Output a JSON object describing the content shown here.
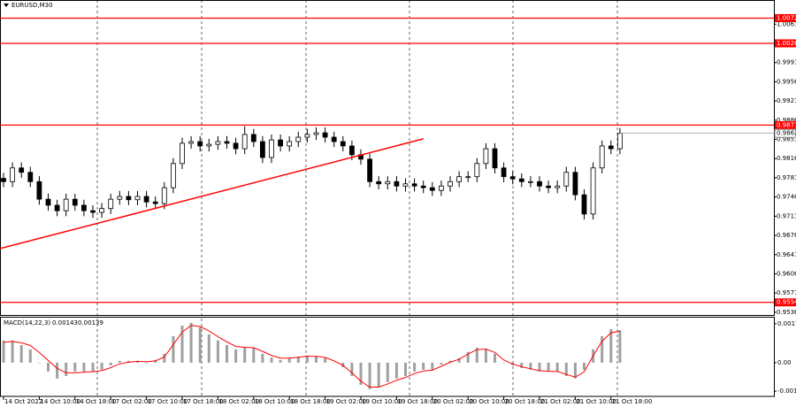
{
  "chart_data": [
    {
      "type": "candlestick",
      "symbol": "EURUSD,M30",
      "categories": [
        "14 Oct 2022",
        null,
        null,
        null,
        "14 Oct 10:00",
        null,
        null,
        null,
        "14 Oct 18:00",
        null,
        null,
        null,
        "17 Oct 02:00",
        null,
        null,
        null,
        "17 Oct 10:00",
        null,
        null,
        null,
        "17 Oct 18:00",
        null,
        null,
        null,
        "18 Oct 02:00",
        null,
        null,
        null,
        "18 Oct 10:00",
        null,
        null,
        null,
        "18 Oct 18:00",
        null,
        null,
        null,
        "19 Oct 02:00",
        null,
        null,
        null,
        "19 Oct 10:00",
        null,
        null,
        null,
        "19 Oct 18:00",
        null,
        null,
        null,
        "20 Oct 02:00",
        null,
        null,
        null,
        "20 Oct 10:00",
        null,
        null,
        null,
        "20 Oct 18:00",
        null,
        null,
        null,
        "21 Oct 02:00",
        null,
        null,
        null,
        "21 Oct 10:00",
        null,
        null,
        null,
        "21 Oct 18:00",
        null
      ],
      "open": [
        0.978,
        0.9774,
        0.9799,
        0.9791,
        0.9774,
        0.9742,
        0.9731,
        0.9721,
        0.9742,
        0.9731,
        0.9721,
        0.9718,
        0.9725,
        0.9742,
        0.9747,
        0.9741,
        0.9747,
        0.9737,
        0.9734,
        0.9763,
        0.9807,
        0.9844,
        0.9847,
        0.9839,
        0.9842,
        0.9847,
        0.9844,
        0.9834,
        0.986,
        0.9847,
        0.9818,
        0.985,
        0.9839,
        0.9847,
        0.9855,
        0.986,
        0.9863,
        0.9855,
        0.9847,
        0.9839,
        0.9823,
        0.9815,
        0.9774,
        0.977,
        0.9774,
        0.9766,
        0.977,
        0.9766,
        0.9763,
        0.9758,
        0.9766,
        0.9774,
        0.9783,
        0.9783,
        0.9807,
        0.9834,
        0.9799,
        0.9783,
        0.9779,
        0.9774,
        0.9774,
        0.9766,
        0.9763,
        0.9766,
        0.9791,
        0.975,
        0.9715,
        0.9799,
        0.9839,
        0.9834
      ],
      "high": [
        0.979,
        0.9809,
        0.9809,
        0.9801,
        0.9784,
        0.9752,
        0.9741,
        0.9752,
        0.9752,
        0.9741,
        0.9731,
        0.9735,
        0.9752,
        0.9757,
        0.9757,
        0.9757,
        0.9757,
        0.9747,
        0.9773,
        0.9817,
        0.9854,
        0.9857,
        0.9857,
        0.9852,
        0.9857,
        0.9857,
        0.9854,
        0.9875,
        0.987,
        0.9857,
        0.986,
        0.986,
        0.9857,
        0.9865,
        0.987,
        0.9873,
        0.9873,
        0.9865,
        0.9857,
        0.9849,
        0.9833,
        0.9825,
        0.9784,
        0.9784,
        0.9784,
        0.978,
        0.978,
        0.9776,
        0.9773,
        0.9776,
        0.9784,
        0.9793,
        0.9793,
        0.9817,
        0.9844,
        0.9844,
        0.9809,
        0.9793,
        0.9789,
        0.9784,
        0.9784,
        0.9776,
        0.9776,
        0.9801,
        0.9801,
        0.976,
        0.9809,
        0.9849,
        0.9849,
        0.9872
      ],
      "low": [
        0.9764,
        0.9764,
        0.9781,
        0.9764,
        0.9732,
        0.9721,
        0.9711,
        0.9711,
        0.9721,
        0.9711,
        0.9708,
        0.9708,
        0.9715,
        0.9732,
        0.9731,
        0.9731,
        0.9727,
        0.9724,
        0.9724,
        0.9753,
        0.9797,
        0.9834,
        0.9829,
        0.9829,
        0.9832,
        0.9834,
        0.9824,
        0.9824,
        0.9837,
        0.9808,
        0.9808,
        0.9829,
        0.9829,
        0.9837,
        0.9845,
        0.985,
        0.9845,
        0.9837,
        0.9829,
        0.9813,
        0.9805,
        0.9764,
        0.976,
        0.976,
        0.9756,
        0.9756,
        0.9756,
        0.9753,
        0.9748,
        0.9748,
        0.9756,
        0.9764,
        0.9773,
        0.9773,
        0.9797,
        0.9789,
        0.9773,
        0.9769,
        0.9764,
        0.9764,
        0.9756,
        0.9753,
        0.9753,
        0.9756,
        0.974,
        0.9705,
        0.9705,
        0.9789,
        0.9824,
        0.9824
      ],
      "close": [
        0.9774,
        0.9799,
        0.9791,
        0.9774,
        0.9742,
        0.9731,
        0.9721,
        0.9742,
        0.9731,
        0.9721,
        0.9718,
        0.9725,
        0.9742,
        0.9747,
        0.9741,
        0.9747,
        0.9737,
        0.9734,
        0.9763,
        0.9807,
        0.9844,
        0.9847,
        0.9839,
        0.9842,
        0.9847,
        0.9844,
        0.9834,
        0.986,
        0.9847,
        0.9818,
        0.985,
        0.9839,
        0.9847,
        0.9855,
        0.986,
        0.9863,
        0.9855,
        0.9847,
        0.9839,
        0.9823,
        0.9815,
        0.9774,
        0.977,
        0.9774,
        0.9766,
        0.977,
        0.9766,
        0.9763,
        0.9758,
        0.9766,
        0.9774,
        0.9783,
        0.9783,
        0.9807,
        0.9834,
        0.9799,
        0.9783,
        0.9779,
        0.9774,
        0.9774,
        0.9766,
        0.9763,
        0.9766,
        0.9791,
        0.975,
        0.9715,
        0.9799,
        0.9839,
        0.9834,
        0.9862
      ],
      "ylim": [
        0.9531,
        1.0105
      ],
      "yticks": [
        1.0061,
        0.9991,
        0.9956,
        0.9921,
        0.9886,
        0.9851,
        0.9816,
        0.9781,
        0.9746,
        0.9711,
        0.9676,
        0.9641,
        0.9606,
        0.9571,
        0.9536
      ],
      "levels": [
        1.0072,
        1.0026,
        0.9877,
        0.9554
      ],
      "level_color": "#ff0000",
      "trendline": {
        "start": [
          0,
          0.9652
        ],
        "end": [
          47,
          0.9852
        ],
        "color": "#ff0000"
      }
    },
    {
      "type": "macd",
      "title": "MACD(14,22,3)",
      "values": [
        0.00098,
        0.00098,
        0.00078,
        0.00059,
        0,
        -0.00039,
        -0.0007,
        -0.00059,
        -0.00039,
        -0.00039,
        -0.00039,
        -0.00031,
        -0.00012,
        8e-05,
        8e-05,
        8e-05,
        0,
        0.00012,
        0.00039,
        0.00117,
        0.00164,
        0.00176,
        0.00156,
        0.00125,
        0.00098,
        0.00078,
        0.00059,
        0.00066,
        0.00066,
        0.00039,
        0.00023,
        0.00012,
        0.0002,
        0.00027,
        0.00031,
        0.00027,
        0.0002,
        0,
        -0.0002,
        -0.00059,
        -0.00098,
        -0.00117,
        -0.00109,
        -0.00086,
        -0.0007,
        -0.00059,
        -0.00039,
        -0.00031,
        -0.00031,
        -8e-05,
        8e-05,
        0.0002,
        0.00047,
        0.00066,
        0.00059,
        0.00039,
        0,
        -0.00012,
        -0.00023,
        -0.00031,
        -0.00039,
        -0.00039,
        -0.00039,
        -0.00059,
        -0.0007,
        -0.00031,
        0.00059,
        0.00117,
        0.00148,
        0.00143
      ],
      "signal": [
        0.0009,
        0.00094,
        0.00088,
        0.00076,
        0.00045,
        0.0001,
        -0.00025,
        -0.00045,
        -0.00045,
        -0.00042,
        -0.0004,
        -0.00035,
        -0.00022,
        -5e-05,
        2e-05,
        6e-05,
        4e-05,
        8e-05,
        0.00025,
        0.0008,
        0.00135,
        0.00165,
        0.0016,
        0.0014,
        0.00115,
        0.00092,
        0.00072,
        0.00068,
        0.00066,
        0.0005,
        0.00032,
        0.0002,
        0.0002,
        0.00024,
        0.00029,
        0.00028,
        0.00023,
        8e-05,
        -0.00012,
        -0.00045,
        -0.00082,
        -0.00108,
        -0.00108,
        -0.00094,
        -0.00078,
        -0.00065,
        -0.00048,
        -0.00037,
        -0.00033,
        -0.00016,
        2e-05,
        0.00015,
        0.00038,
        0.00058,
        0.0006,
        0.00045,
        0.00012,
        -6e-05,
        -0.00018,
        -0.00027,
        -0.00035,
        -0.00038,
        -0.00039,
        -0.00052,
        -0.00064,
        -0.0004,
        0.0003,
        0.00095,
        0.00132,
        0.00139
      ],
      "hist_color": "#a0a0a0",
      "signal_color": "#ff0000",
      "ylim": [
        -0.00149,
        0.00203
      ],
      "yticks": [
        0.00172,
        {
          "value": 0,
          "label": "0.00"
        },
        -0.00126
      ]
    }
  ]
}
